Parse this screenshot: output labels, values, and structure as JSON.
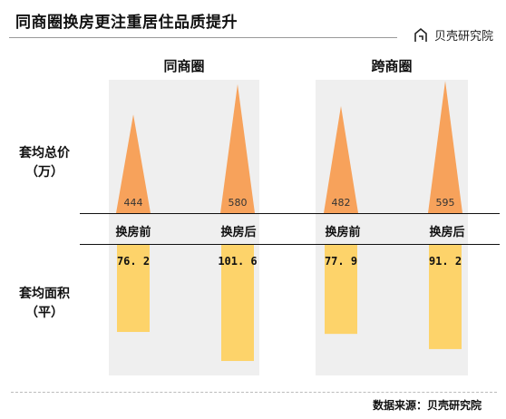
{
  "title": "同商圈换房更注重居住品质提升",
  "brand": "贝壳研究院",
  "source": "数据来源：贝壳研究院",
  "colors": {
    "triangle": "#f7a25b",
    "bar": "#fdd36a",
    "panel": "#efefef"
  },
  "row_labels": {
    "price": "套均总价\n（万）",
    "area": "套均面积\n（平）"
  },
  "chart_data": {
    "type": "bar",
    "groups": [
      "同商圈",
      "跨商圈"
    ],
    "categories": [
      "换房前",
      "换房后"
    ],
    "series": [
      {
        "name": "套均总价（万）",
        "values": {
          "同商圈": [
            444,
            580
          ],
          "跨商圈": [
            482,
            595
          ]
        },
        "labels": {
          "同商圈": [
            "444",
            "580"
          ],
          "跨商圈": [
            "482",
            "595"
          ]
        }
      },
      {
        "name": "套均面积（平）",
        "values": {
          "同商圈": [
            76.2,
            101.6
          ],
          "跨商圈": [
            77.9,
            91.2
          ]
        },
        "labels": {
          "同商圈": [
            "76. 2",
            "101. 6"
          ],
          "跨商圈": [
            "77. 9",
            "91. 2"
          ]
        }
      }
    ]
  }
}
